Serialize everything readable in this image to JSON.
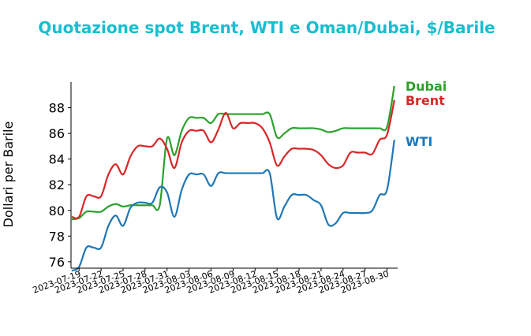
{
  "chart_data": {
    "type": "line",
    "title": "Quotazione spot Brent, WTI e Oman/Dubai, $/Barile",
    "xlabel": "",
    "ylabel": "Dollari per Barile",
    "ylim": [
      75.5,
      90.0
    ],
    "yticks": [
      76,
      78,
      80,
      82,
      84,
      86,
      88
    ],
    "xticks": [
      "2023-07-19",
      "2023-07-22",
      "2023-07-25",
      "2023-07-28",
      "2023-07-31",
      "2023-08-03",
      "2023-08-06",
      "2023-08-09",
      "2023-08-12",
      "2023-08-15",
      "2023-08-18",
      "2023-08-21",
      "2023-08-24",
      "2023-08-27",
      "2023-08-30"
    ],
    "x": [
      "2023-07-18",
      "2023-07-19",
      "2023-07-20",
      "2023-07-21",
      "2023-07-22",
      "2023-07-23",
      "2023-07-24",
      "2023-07-25",
      "2023-07-26",
      "2023-07-27",
      "2023-07-28",
      "2023-07-29",
      "2023-07-30",
      "2023-07-31",
      "2023-08-01",
      "2023-08-02",
      "2023-08-03",
      "2023-08-04",
      "2023-08-05",
      "2023-08-06",
      "2023-08-07",
      "2023-08-08",
      "2023-08-09",
      "2023-08-10",
      "2023-08-11",
      "2023-08-12",
      "2023-08-13",
      "2023-08-14",
      "2023-08-15",
      "2023-08-16",
      "2023-08-17",
      "2023-08-18",
      "2023-08-19",
      "2023-08-20",
      "2023-08-21",
      "2023-08-22",
      "2023-08-23",
      "2023-08-24",
      "2023-08-25",
      "2023-08-26",
      "2023-08-27",
      "2023-08-28",
      "2023-08-29",
      "2023-08-30",
      "2023-08-31"
    ],
    "series": [
      {
        "name": "Dubai",
        "color": "#2ca02c",
        "values": [
          79.3,
          79.4,
          79.9,
          79.9,
          79.9,
          80.3,
          80.5,
          80.3,
          80.4,
          80.4,
          80.4,
          80.4,
          80.4,
          85.6,
          84.3,
          86.2,
          87.2,
          87.2,
          87.2,
          86.8,
          87.5,
          87.5,
          87.5,
          87.5,
          87.5,
          87.5,
          87.5,
          87.5,
          85.7,
          86.0,
          86.4,
          86.4,
          86.4,
          86.4,
          86.3,
          86.1,
          86.2,
          86.4,
          86.4,
          86.4,
          86.4,
          86.4,
          86.4,
          86.5,
          89.7
        ]
      },
      {
        "name": "Brent",
        "color": "#d62728",
        "values": [
          79.5,
          79.5,
          81.1,
          81.1,
          81.1,
          82.8,
          83.6,
          82.8,
          84.2,
          85.0,
          85.0,
          85.0,
          85.6,
          84.8,
          83.3,
          85.3,
          86.2,
          86.2,
          86.2,
          85.3,
          86.3,
          87.6,
          86.4,
          86.8,
          86.8,
          86.8,
          86.4,
          85.3,
          83.5,
          84.2,
          84.8,
          84.8,
          84.8,
          84.7,
          84.3,
          83.6,
          83.3,
          83.5,
          84.5,
          84.5,
          84.5,
          84.4,
          85.5,
          85.9,
          88.6
        ]
      },
      {
        "name": "WTI",
        "color": "#1f77b4",
        "values": [
          75.3,
          75.6,
          77.1,
          77.1,
          77.1,
          78.8,
          79.6,
          78.8,
          80.2,
          80.6,
          80.6,
          80.6,
          81.8,
          81.4,
          79.5,
          81.6,
          82.8,
          82.8,
          82.8,
          81.9,
          82.9,
          82.9,
          82.9,
          82.9,
          82.9,
          82.9,
          82.9,
          82.9,
          79.4,
          80.3,
          81.2,
          81.2,
          81.2,
          80.8,
          80.4,
          78.9,
          79.0,
          79.8,
          79.8,
          79.8,
          79.8,
          80.0,
          81.2,
          81.6,
          85.5
        ]
      }
    ]
  }
}
